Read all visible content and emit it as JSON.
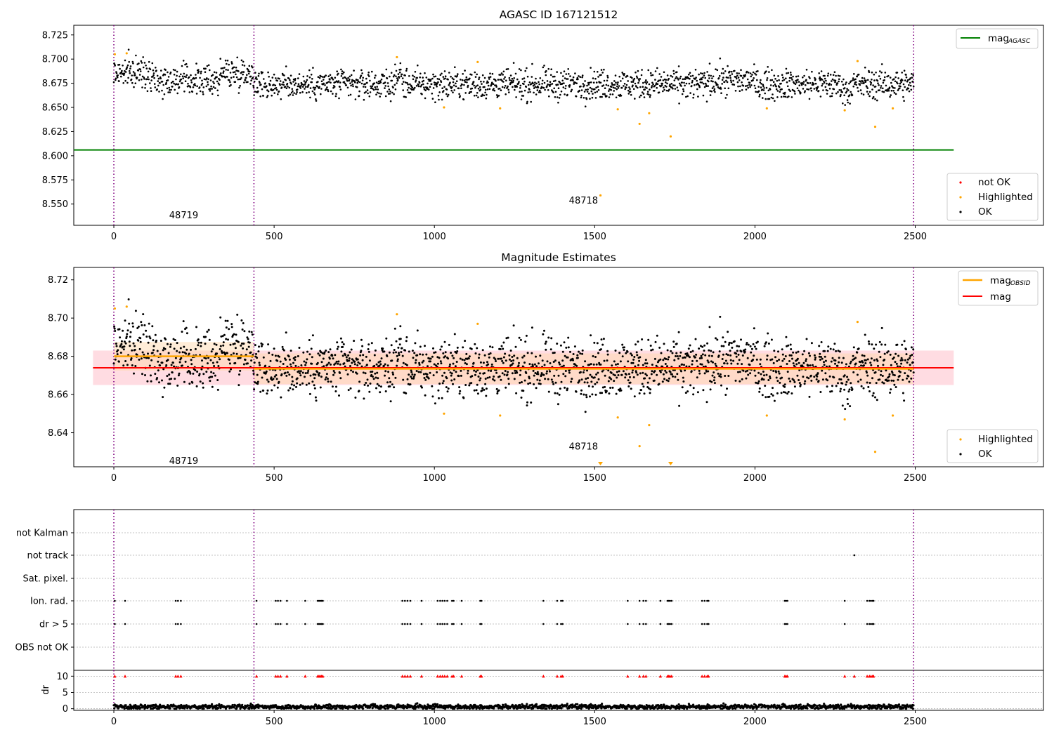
{
  "colors": {
    "ok": "#000000",
    "highlighted": "#ffa500",
    "not_ok": "#ff0000",
    "agasc_line": "#008000",
    "obs_boundary": "#800080",
    "mag_line": "#ff0000",
    "mag_band": "#ffc0cb",
    "obsid_line": "#ffa500",
    "obsid_band": "#ffd8a8"
  },
  "chart_data": [
    {
      "type": "scatter",
      "title": "AGASC ID 167121512",
      "xlabel": "",
      "ylabel": "",
      "xlim": [
        -125,
        2900
      ],
      "ylim": [
        8.528,
        8.735
      ],
      "xticks": [
        "0",
        "500",
        "1000",
        "1500",
        "2000",
        "2500"
      ],
      "xtick_values": [
        0,
        500,
        1000,
        1500,
        2000,
        2500
      ],
      "yticks": [
        "8.550",
        "8.575",
        "8.600",
        "8.625",
        "8.650",
        "8.675",
        "8.700",
        "8.725"
      ],
      "ytick_values": [
        8.55,
        8.575,
        8.6,
        8.625,
        8.65,
        8.675,
        8.7,
        8.725
      ],
      "obs_boundaries": [
        0,
        437,
        2495
      ],
      "obsid_labels": [
        {
          "text": "48719",
          "x": 218,
          "y": 8.539
        },
        {
          "text": "48718",
          "x": 1465,
          "y": 8.554
        }
      ],
      "lines": [
        {
          "name": "mag",
          "sub": "AGASC",
          "y": 8.606,
          "x": [
            0,
            2620
          ]
        }
      ],
      "legend_lines": {
        "name": "mag",
        "sub": "AGASC",
        "placement": "upper right"
      },
      "legend_points": {
        "entries": [
          "not OK",
          "Highlighted",
          "OK"
        ],
        "placement": "lower right"
      },
      "series": [
        {
          "name": "OK",
          "x_range": [
            0,
            2495
          ],
          "center": 8.674,
          "spread": 0.008
        },
        {
          "name": "Highlighted",
          "points": [
            [
              3,
              8.705
            ],
            [
              40,
              8.706
            ],
            [
              883,
              8.702
            ],
            [
              1030,
              8.65
            ],
            [
              1135,
              8.697
            ],
            [
              1205,
              8.649
            ],
            [
              1518,
              8.559
            ],
            [
              1572,
              8.648
            ],
            [
              1640,
              8.633
            ],
            [
              1670,
              8.644
            ],
            [
              1737,
              8.62
            ],
            [
              2037,
              8.649
            ],
            [
              2280,
              8.647
            ],
            [
              2320,
              8.698
            ],
            [
              2375,
              8.63
            ],
            [
              2430,
              8.649
            ]
          ]
        }
      ]
    },
    {
      "type": "scatter",
      "title": "Magnitude Estimates",
      "xlabel": "",
      "ylabel": "",
      "xlim": [
        -125,
        2900
      ],
      "ylim": [
        8.6222,
        8.7265
      ],
      "xticks": [
        "0",
        "500",
        "1000",
        "1500",
        "2000",
        "2500"
      ],
      "xtick_values": [
        0,
        500,
        1000,
        1500,
        2000,
        2500
      ],
      "yticks": [
        "8.64",
        "8.66",
        "8.68",
        "8.70",
        "8.72"
      ],
      "ytick_values": [
        8.64,
        8.66,
        8.68,
        8.7,
        8.72
      ],
      "obs_boundaries": [
        0,
        437,
        2495
      ],
      "obsid_labels": [
        {
          "text": "48719",
          "x": 218,
          "y": 8.6255
        },
        {
          "text": "48718",
          "x": 1465,
          "y": 8.633
        }
      ],
      "lines": [
        {
          "name": "mag",
          "sub": "OBSID",
          "segments": [
            {
              "x": [
                0,
                437
              ],
              "y": 8.68,
              "band": [
                8.6725,
                8.6875
              ]
            },
            {
              "x": [
                437,
                2495
              ],
              "y": 8.6735,
              "band": [
                8.6655,
                8.6815
              ]
            }
          ]
        },
        {
          "name": "mag",
          "sub": "",
          "y": 8.674,
          "x": [
            -65,
            2620
          ],
          "band": [
            8.665,
            8.683
          ]
        }
      ],
      "legend_lines": {
        "placement": "upper right"
      },
      "legend_points": {
        "entries": [
          "Highlighted",
          "OK"
        ],
        "placement": "lower right"
      },
      "series": [
        {
          "name": "OK",
          "x_range": [
            0,
            2495
          ],
          "center": 8.674,
          "spread": 0.008
        },
        {
          "name": "Highlighted",
          "points": [
            [
              3,
              8.705
            ],
            [
              40,
              8.706
            ],
            [
              883,
              8.702
            ],
            [
              1030,
              8.65
            ],
            [
              1135,
              8.697
            ],
            [
              1205,
              8.649
            ],
            [
              1572,
              8.648
            ],
            [
              1640,
              8.633
            ],
            [
              1670,
              8.644
            ],
            [
              2037,
              8.649
            ],
            [
              2280,
              8.647
            ],
            [
              2320,
              8.698
            ],
            [
              2375,
              8.63
            ],
            [
              2430,
              8.649
            ]
          ]
        },
        {
          "name": "Highlighted (below range)",
          "marker": "triangle-down",
          "points": [
            [
              1518,
              8.6225
            ],
            [
              1737,
              8.6225
            ]
          ]
        }
      ]
    },
    {
      "type": "scatter",
      "title": "",
      "xlabel": "",
      "ylabel": "",
      "xlim": [
        -125,
        2900
      ],
      "categories": [
        "not Kalman",
        "not track",
        "Sat. pixel.",
        "Ion. rad.",
        "dr > 5",
        "OBS not OK"
      ],
      "obs_boundaries": [
        0,
        437,
        2495
      ],
      "series": [
        {
          "name": "not track",
          "x": [
            2310
          ]
        },
        {
          "name": "Ion. rad.",
          "x": [
            3,
            35,
            193,
            200,
            209,
            445,
            505,
            512,
            520,
            540,
            597,
            636,
            640,
            644,
            648,
            652,
            900,
            908,
            916,
            925,
            960,
            1010,
            1018,
            1025,
            1032,
            1040,
            1055,
            1060,
            1085,
            1143,
            1147,
            1340,
            1383,
            1395,
            1400,
            1603,
            1640,
            1652,
            1660,
            1705,
            1727,
            1731,
            1735,
            1740,
            1835,
            1843,
            1851,
            1855,
            2093,
            2097,
            2101,
            2280,
            2350,
            2357,
            2362,
            2367,
            2370
          ]
        },
        {
          "name": "dr > 5",
          "x": [
            3,
            35,
            193,
            200,
            209,
            445,
            505,
            512,
            520,
            540,
            597,
            636,
            640,
            644,
            648,
            652,
            900,
            908,
            916,
            925,
            960,
            1010,
            1018,
            1025,
            1032,
            1040,
            1055,
            1060,
            1085,
            1143,
            1147,
            1340,
            1383,
            1395,
            1400,
            1603,
            1640,
            1652,
            1660,
            1705,
            1727,
            1731,
            1735,
            1740,
            1835,
            1843,
            1851,
            1855,
            2093,
            2097,
            2101,
            2280,
            2350,
            2357,
            2362,
            2367,
            2370
          ]
        }
      ]
    },
    {
      "type": "line",
      "title": "",
      "xlabel": "",
      "ylabel": "dr",
      "xlim": [
        -125,
        2900
      ],
      "ylim": [
        -0.5,
        11.8
      ],
      "xticks": [
        "0",
        "500",
        "1000",
        "1500",
        "2000",
        "2500"
      ],
      "xtick_values": [
        0,
        500,
        1000,
        1500,
        2000,
        2500
      ],
      "yticks": [
        "0",
        "5",
        "10"
      ],
      "ytick_values": [
        0,
        5,
        10
      ],
      "obs_boundaries": [
        0,
        437,
        2495
      ],
      "series": [
        {
          "name": "dr",
          "x_range": [
            0,
            2495
          ],
          "center": 0.6,
          "spread": 0.35
        },
        {
          "name": "not OK",
          "marker": "triangle-up",
          "y": 10,
          "x": [
            3,
            35,
            193,
            200,
            209,
            445,
            505,
            512,
            520,
            540,
            597,
            636,
            640,
            644,
            648,
            652,
            900,
            908,
            916,
            925,
            960,
            1010,
            1018,
            1025,
            1032,
            1040,
            1055,
            1060,
            1085,
            1143,
            1147,
            1340,
            1383,
            1395,
            1400,
            1603,
            1640,
            1652,
            1660,
            1705,
            1727,
            1731,
            1735,
            1740,
            1835,
            1843,
            1851,
            1855,
            2093,
            2097,
            2101,
            2280,
            2310,
            2350,
            2357,
            2362,
            2367,
            2370
          ]
        }
      ]
    }
  ]
}
